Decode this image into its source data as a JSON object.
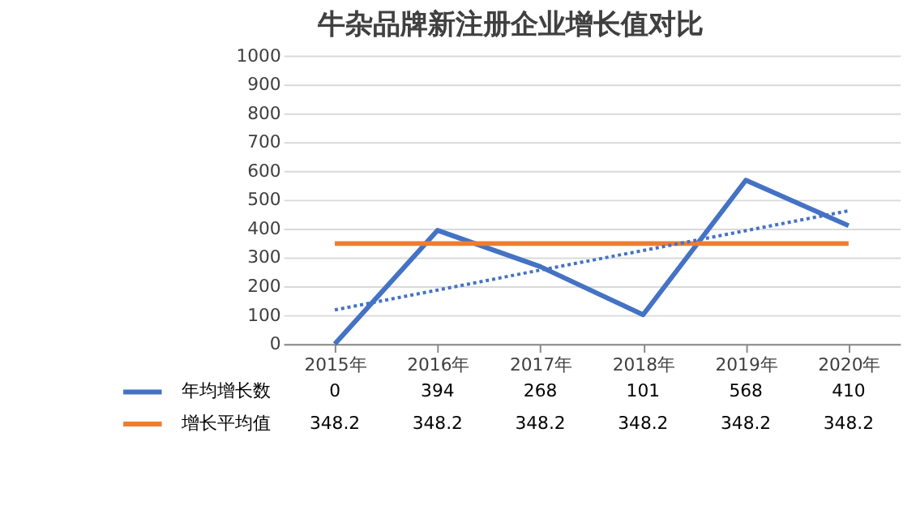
{
  "chart_data": {
    "type": "line",
    "title": "牛杂品牌新注册企业增长值对比",
    "categories": [
      "2015年",
      "2016年",
      "2017年",
      "2018年",
      "2019年",
      "2020年"
    ],
    "series": [
      {
        "name": "年均增长数",
        "color": "#4472c4",
        "line_style": "solid",
        "values": [
          0,
          394,
          268,
          101,
          568,
          410
        ],
        "value_labels": [
          "0",
          "394",
          "268",
          "101",
          "568",
          "410"
        ]
      },
      {
        "name": "增长平均值",
        "color": "#ed7d31",
        "line_style": "solid",
        "values": [
          348.2,
          348.2,
          348.2,
          348.2,
          348.2,
          348.2
        ],
        "value_labels": [
          "348.2",
          "348.2",
          "348.2",
          "348.2",
          "348.2",
          "348.2"
        ]
      },
      {
        "color": "#4472c4",
        "line_style": "dotted",
        "values": [
          118,
          187,
          256,
          324,
          393,
          462
        ]
      }
    ],
    "ylim": [
      0,
      1000
    ],
    "yticks": [
      0,
      100,
      200,
      300,
      400,
      500,
      600,
      700,
      800,
      900,
      1000
    ],
    "grid": "y",
    "legend": "bottom",
    "marker": "none"
  }
}
